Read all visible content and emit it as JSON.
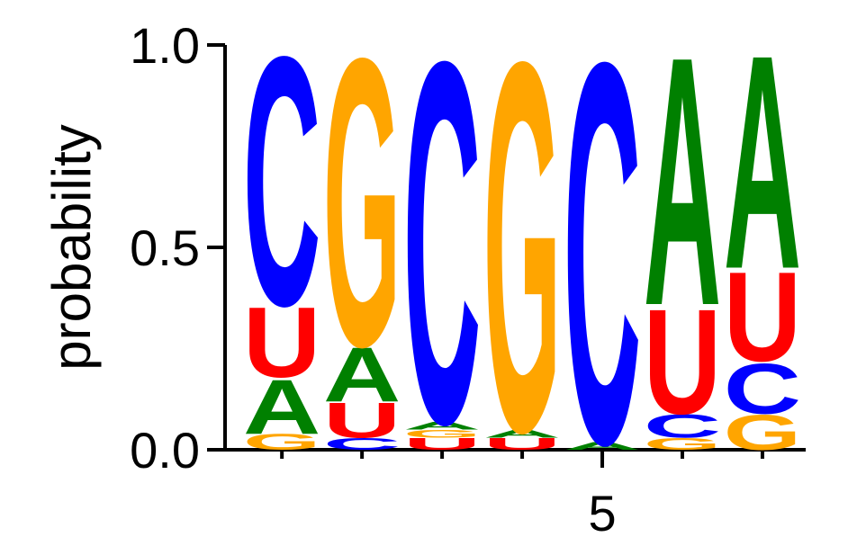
{
  "chart_data": {
    "type": "sequence-logo",
    "ylabel": "probability",
    "ylim": [
      0,
      1
    ],
    "yticks": [
      {
        "value": 0,
        "label": "0.0"
      },
      {
        "value": 0.5,
        "label": "0.5"
      },
      {
        "value": 1,
        "label": "1.0"
      }
    ],
    "xlim": [
      0.29,
      7.54
    ],
    "xticks": [
      5
    ],
    "positions": [
      1,
      2,
      3,
      4,
      5,
      6,
      7
    ],
    "colors": {
      "A": "#008000",
      "C": "#0000ff",
      "G": "#ffa500",
      "U": "#ff0000"
    },
    "stacks": [
      [
        {
          "letter": "G",
          "value": 0.04
        },
        {
          "letter": "A",
          "value": 0.14
        },
        {
          "letter": "U",
          "value": 0.18
        },
        {
          "letter": "C",
          "value": 0.64
        }
      ],
      [
        {
          "letter": "C",
          "value": 0.03
        },
        {
          "letter": "U",
          "value": 0.09
        },
        {
          "letter": "A",
          "value": 0.14
        },
        {
          "letter": "G",
          "value": 0.74
        }
      ],
      [
        {
          "letter": "U",
          "value": 0.03
        },
        {
          "letter": "G",
          "value": 0.02
        },
        {
          "letter": "A",
          "value": 0.02
        },
        {
          "letter": "C",
          "value": 0.93
        }
      ],
      [
        {
          "letter": "U",
          "value": 0.03
        },
        {
          "letter": "A",
          "value": 0.02
        },
        {
          "letter": "G",
          "value": 0.95
        }
      ],
      [
        {
          "letter": "A",
          "value": 0.02
        },
        {
          "letter": "C",
          "value": 0.98
        }
      ],
      [
        {
          "letter": "G",
          "value": 0.03
        },
        {
          "letter": "C",
          "value": 0.06
        },
        {
          "letter": "U",
          "value": 0.27
        },
        {
          "letter": "A",
          "value": 0.64
        }
      ],
      [
        {
          "letter": "G",
          "value": 0.09
        },
        {
          "letter": "C",
          "value": 0.13
        },
        {
          "letter": "U",
          "value": 0.23
        },
        {
          "letter": "A",
          "value": 0.55
        }
      ]
    ]
  }
}
